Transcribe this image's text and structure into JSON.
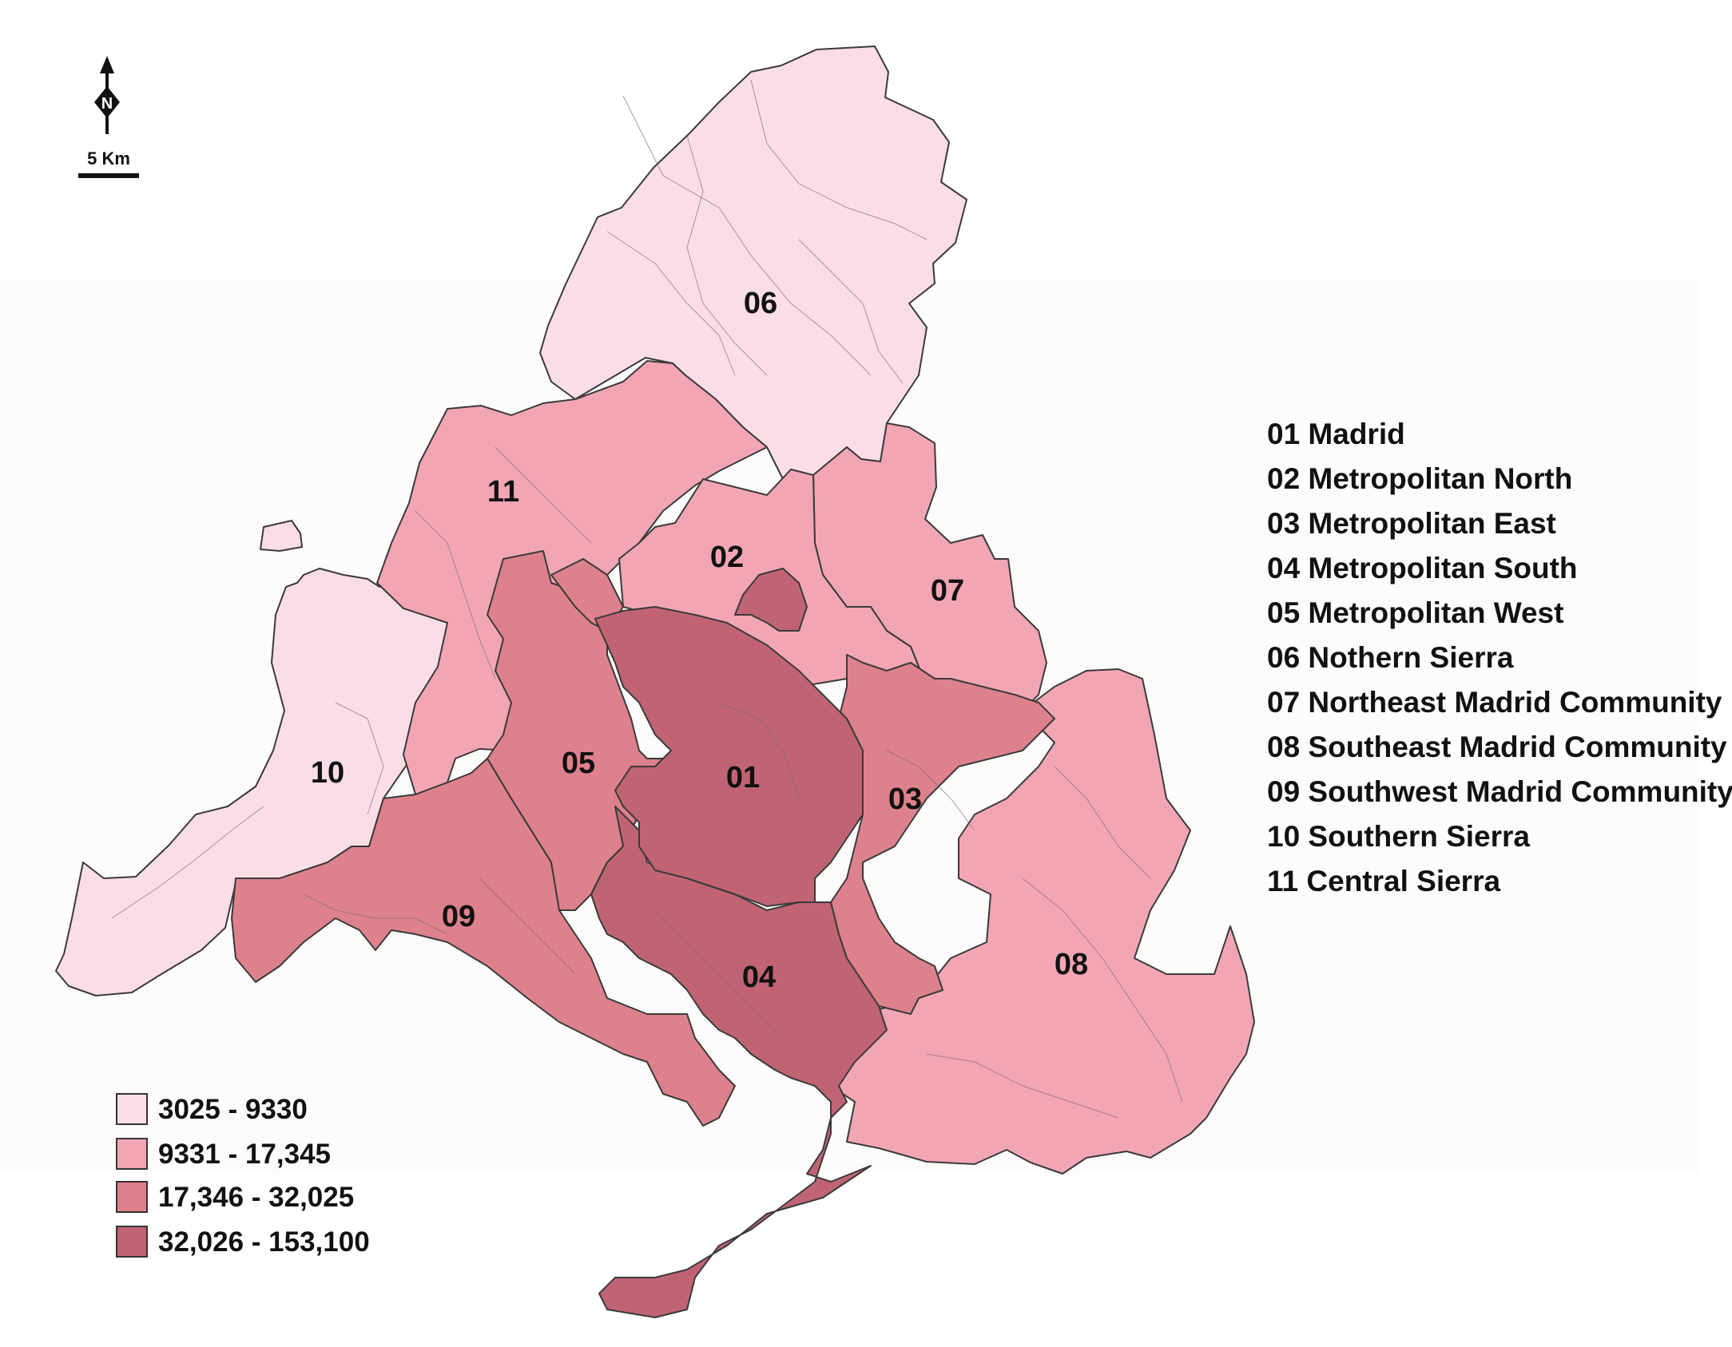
{
  "colors": {
    "background_band": "#fdfcfb",
    "outline": "#3a3a3a",
    "text": "#111111"
  },
  "scale_bar": {
    "label": "5 Km"
  },
  "north_arrow": {
    "icon": "north-arrow-icon",
    "letter": "N"
  },
  "legend": {
    "classes": [
      {
        "label": "3025 - 9330",
        "color": "#fbdde6"
      },
      {
        "label": "9331 - 17,345",
        "color": "#f2a6b4"
      },
      {
        "label": "17,346 - 32,025",
        "color": "#dd818c"
      },
      {
        "label": "32,026 - 153,100",
        "color": "#c06474"
      }
    ]
  },
  "regions": [
    {
      "code": "01",
      "name": "Madrid",
      "class": 3
    },
    {
      "code": "02",
      "name": "Metropolitan North",
      "class": 1
    },
    {
      "code": "03",
      "name": "Metropolitan East",
      "class": 2
    },
    {
      "code": "04",
      "name": "Metropolitan South",
      "class": 3
    },
    {
      "code": "05",
      "name": "Metropolitan West",
      "class": 2
    },
    {
      "code": "06",
      "name": "Nothern Sierra",
      "class": 0
    },
    {
      "code": "07",
      "name": "Northeast Madrid Community",
      "class": 1
    },
    {
      "code": "08",
      "name": "Southeast Madrid Community",
      "class": 1
    },
    {
      "code": "09",
      "name": "Southwest Madrid Community",
      "class": 2
    },
    {
      "code": "10",
      "name": "Southern Sierra",
      "class": 0
    },
    {
      "code": "11",
      "name": "Central Sierra",
      "class": 1
    }
  ],
  "key_lines": [
    "01 Madrid",
    "02 Metropolitan North",
    "03 Metropolitan East",
    "04 Metropolitan South",
    "05 Metropolitan West",
    "06 Nothern Sierra",
    "07 Northeast Madrid Community",
    "08 Southeast Madrid Community",
    "09 Southwest Madrid Community",
    "10 Southern Sierra",
    "11 Central Sierra"
  ]
}
